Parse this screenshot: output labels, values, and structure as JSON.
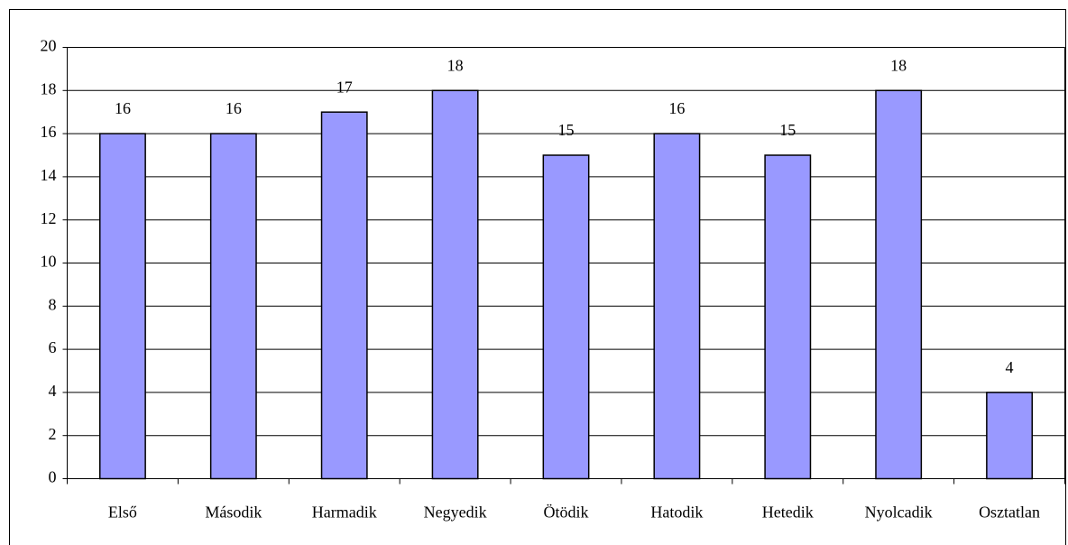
{
  "chart_data": {
    "type": "bar",
    "categories": [
      "Első",
      "Második",
      "Harmadik",
      "Negyedik",
      "Ötödik",
      "Hatodik",
      "Hetedik",
      "Nyolcadik",
      "Osztatlan"
    ],
    "values": [
      16,
      16,
      17,
      18,
      15,
      16,
      15,
      18,
      4
    ],
    "color": "#9999ff",
    "ylim": [
      0,
      20
    ],
    "yticks": [
      0,
      2,
      4,
      6,
      8,
      10,
      12,
      14,
      16,
      18,
      20
    ],
    "grid": true
  }
}
